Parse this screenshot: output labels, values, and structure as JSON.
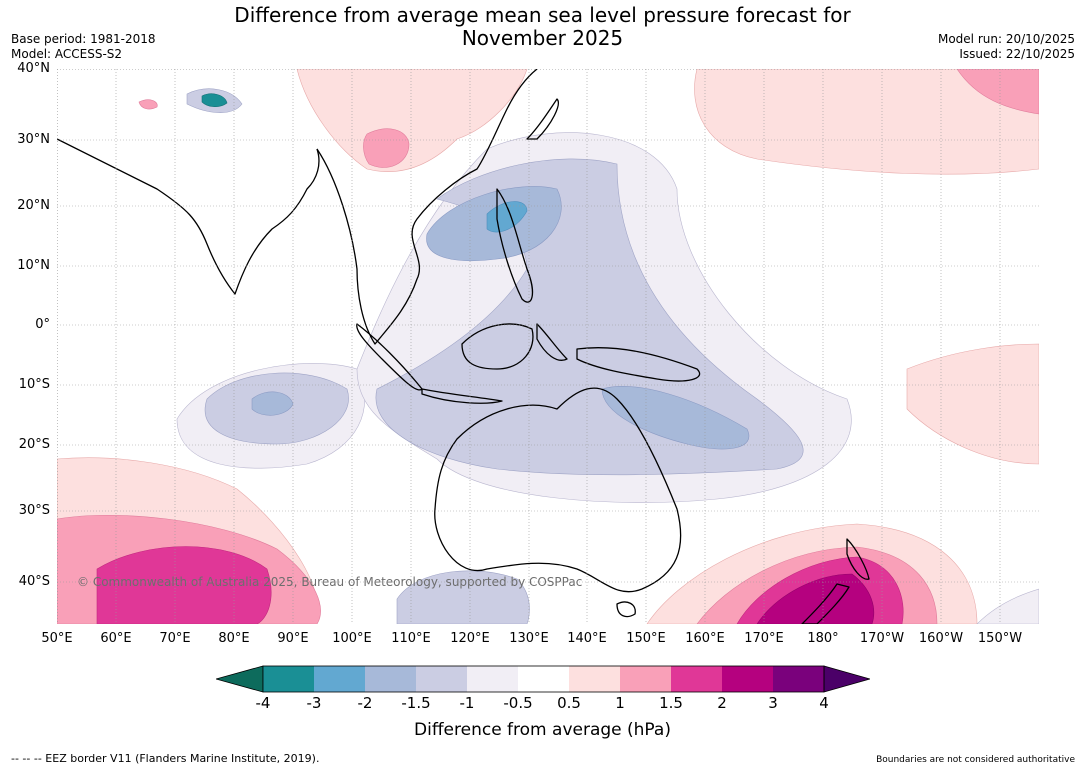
{
  "title_line1": "Difference from average mean sea level pressure forecast for",
  "title_line2": "November 2025",
  "meta_left": {
    "base_period": "Base period: 1981-2018",
    "model": "Model: ACCESS-S2"
  },
  "meta_right": {
    "model_run": "Model run: 20/10/2025",
    "issued": "Issued: 22/10/2025"
  },
  "latitude_labels": [
    "40°N",
    "30°N",
    "20°N",
    "10°N",
    "0°",
    "10°S",
    "20°S",
    "30°S",
    "40°S"
  ],
  "longitude_labels": [
    "50°E",
    "60°E",
    "70°E",
    "80°E",
    "90°E",
    "100°E",
    "110°E",
    "120°E",
    "130°E",
    "140°E",
    "150°E",
    "160°E",
    "170°E",
    "180°",
    "170°W",
    "160°W",
    "150°W"
  ],
  "copyright": "© Commonwealth of Australia 2025, Bureau of Meteorology, supported by COSPPac",
  "colorbar": {
    "title": "Difference from average (hPa)",
    "ticks": [
      "-4",
      "-3",
      "-2",
      "-1.5",
      "-1",
      "-0.5",
      "0.5",
      "1",
      "1.5",
      "2",
      "3",
      "4"
    ],
    "below_color": "#0d6b5c",
    "above_color": "#4b0068",
    "colors": [
      "#1a8f95",
      "#62a8d1",
      "#a7b9d9",
      "#cbcde3",
      "#f1eef5",
      "#ffffff",
      "#fde0df",
      "#f9a0b8",
      "#e03797",
      "#b5017f",
      "#7a017c"
    ]
  },
  "footer_left": "--  --  -- EEZ border V11 (Flanders Marine Institute, 2019).",
  "footer_right": "Boundaries are not considered authoritative"
}
